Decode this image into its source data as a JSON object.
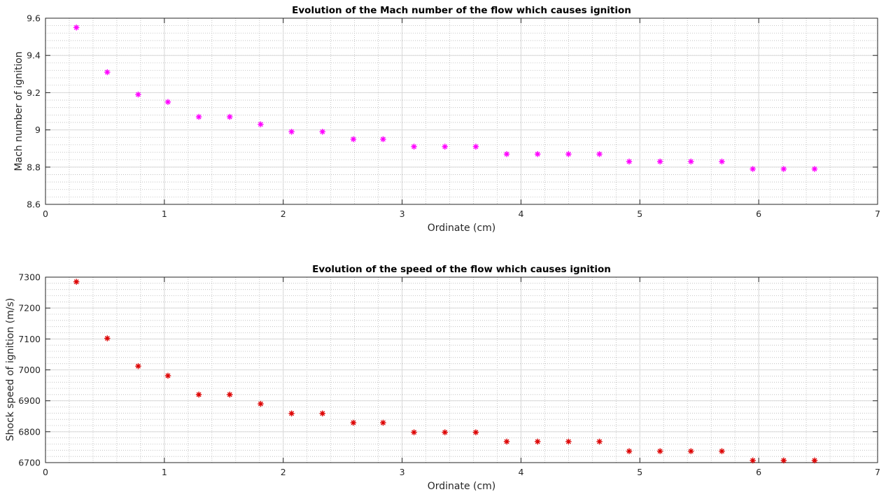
{
  "chart_data": [
    {
      "type": "scatter",
      "title": "Evolution of the Mach number of the flow which causes ignition",
      "xlabel": "Ordinate (cm)",
      "ylabel": "Mach number of ignition",
      "xlim": [
        0,
        7
      ],
      "ylim": [
        8.6,
        9.6
      ],
      "xticks": [
        0,
        1,
        2,
        3,
        4,
        5,
        6,
        7
      ],
      "yticks": [
        8.6,
        8.8,
        9,
        9.2,
        9.4,
        9.6
      ],
      "xtick_labels": [
        "0",
        "1",
        "2",
        "3",
        "4",
        "5",
        "6",
        "7"
      ],
      "ytick_labels": [
        "8.6",
        "8.8",
        "9",
        "9.2",
        "9.4",
        "9.6"
      ],
      "grid": true,
      "minor_grid": true,
      "marker": "asterisk",
      "color": "#ff00ff",
      "x": [
        0.26,
        0.52,
        0.78,
        1.03,
        1.29,
        1.55,
        1.81,
        2.07,
        2.33,
        2.59,
        2.84,
        3.1,
        3.36,
        3.62,
        3.88,
        4.14,
        4.4,
        4.66,
        4.91,
        5.17,
        5.43,
        5.69,
        5.95,
        6.21,
        6.47
      ],
      "y": [
        9.55,
        9.31,
        9.19,
        9.15,
        9.07,
        9.07,
        9.03,
        8.99,
        8.99,
        8.95,
        8.95,
        8.91,
        8.91,
        8.91,
        8.87,
        8.87,
        8.87,
        8.87,
        8.83,
        8.83,
        8.83,
        8.83,
        8.79,
        8.79,
        8.79
      ]
    },
    {
      "type": "scatter",
      "title": "Evolution of the speed of the flow which causes ignition",
      "xlabel": "Ordinate (cm)",
      "ylabel": "Shock speed of ignition (m/s)",
      "xlim": [
        0,
        7
      ],
      "ylim": [
        6700,
        7300
      ],
      "xticks": [
        0,
        1,
        2,
        3,
        4,
        5,
        6,
        7
      ],
      "yticks": [
        6700,
        6800,
        6900,
        7000,
        7100,
        7200,
        7300
      ],
      "xtick_labels": [
        "0",
        "1",
        "2",
        "3",
        "4",
        "5",
        "6",
        "7"
      ],
      "ytick_labels": [
        "6700",
        "6800",
        "6900",
        "7000",
        "7100",
        "7200",
        "7300"
      ],
      "grid": true,
      "minor_grid": true,
      "marker": "asterisk",
      "color": "#dd0000",
      "x": [
        0.26,
        0.52,
        0.78,
        1.03,
        1.29,
        1.55,
        1.81,
        2.07,
        2.33,
        2.59,
        2.84,
        3.1,
        3.36,
        3.62,
        3.88,
        4.14,
        4.4,
        4.66,
        4.91,
        5.17,
        5.43,
        5.69,
        5.95,
        6.21,
        6.47
      ],
      "y": [
        7285,
        7102,
        7012,
        6981,
        6920,
        6920,
        6890,
        6859,
        6859,
        6829,
        6829,
        6798,
        6798,
        6798,
        6768,
        6768,
        6768,
        6768,
        6737,
        6737,
        6737,
        6737,
        6707,
        6707,
        6707
      ]
    }
  ]
}
